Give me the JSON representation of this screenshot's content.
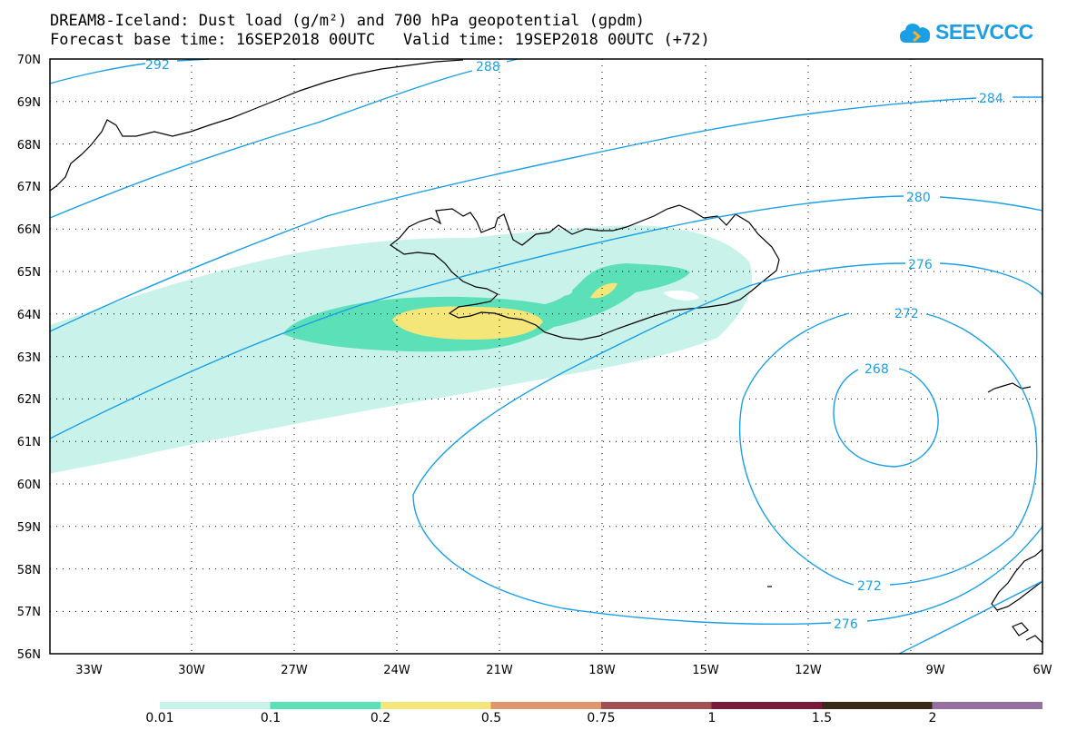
{
  "header": {
    "title_line1": "DREAM8-Iceland: Dust load (g/m²) and 700 hPa geopotential (gpdm)",
    "title_line2": "Forecast base time: 16SEP2018 00UTC   Valid time: 19SEP2018 00UTC (+72)"
  },
  "logo": {
    "text": "SEEVCCC",
    "icon": "cloud-icon",
    "color": "#1a9fe6"
  },
  "map": {
    "lat_labels": [
      "70N",
      "69N",
      "68N",
      "67N",
      "66N",
      "65N",
      "64N",
      "63N",
      "62N",
      "61N",
      "60N",
      "59N",
      "58N",
      "57N",
      "56N"
    ],
    "lon_labels": [
      "33W",
      "30W",
      "27W",
      "24W",
      "21W",
      "18W",
      "15W",
      "12W",
      "9W",
      "6W"
    ],
    "contour_color": "#1a9fe6",
    "contour_labels": [
      "292",
      "288",
      "284",
      "280",
      "276",
      "272",
      "268",
      "272",
      "276"
    ]
  },
  "colorbar": {
    "colors": [
      "#c8f2ea",
      "#5ce0b8",
      "#f5e67a",
      "#e0956b",
      "#a05050",
      "#7a1a3a",
      "#3a2a1a",
      "#9670a0"
    ],
    "labels": [
      "0.01",
      "0.1",
      "0.2",
      "0.5",
      "0.75",
      "1",
      "1.5",
      "2"
    ]
  }
}
